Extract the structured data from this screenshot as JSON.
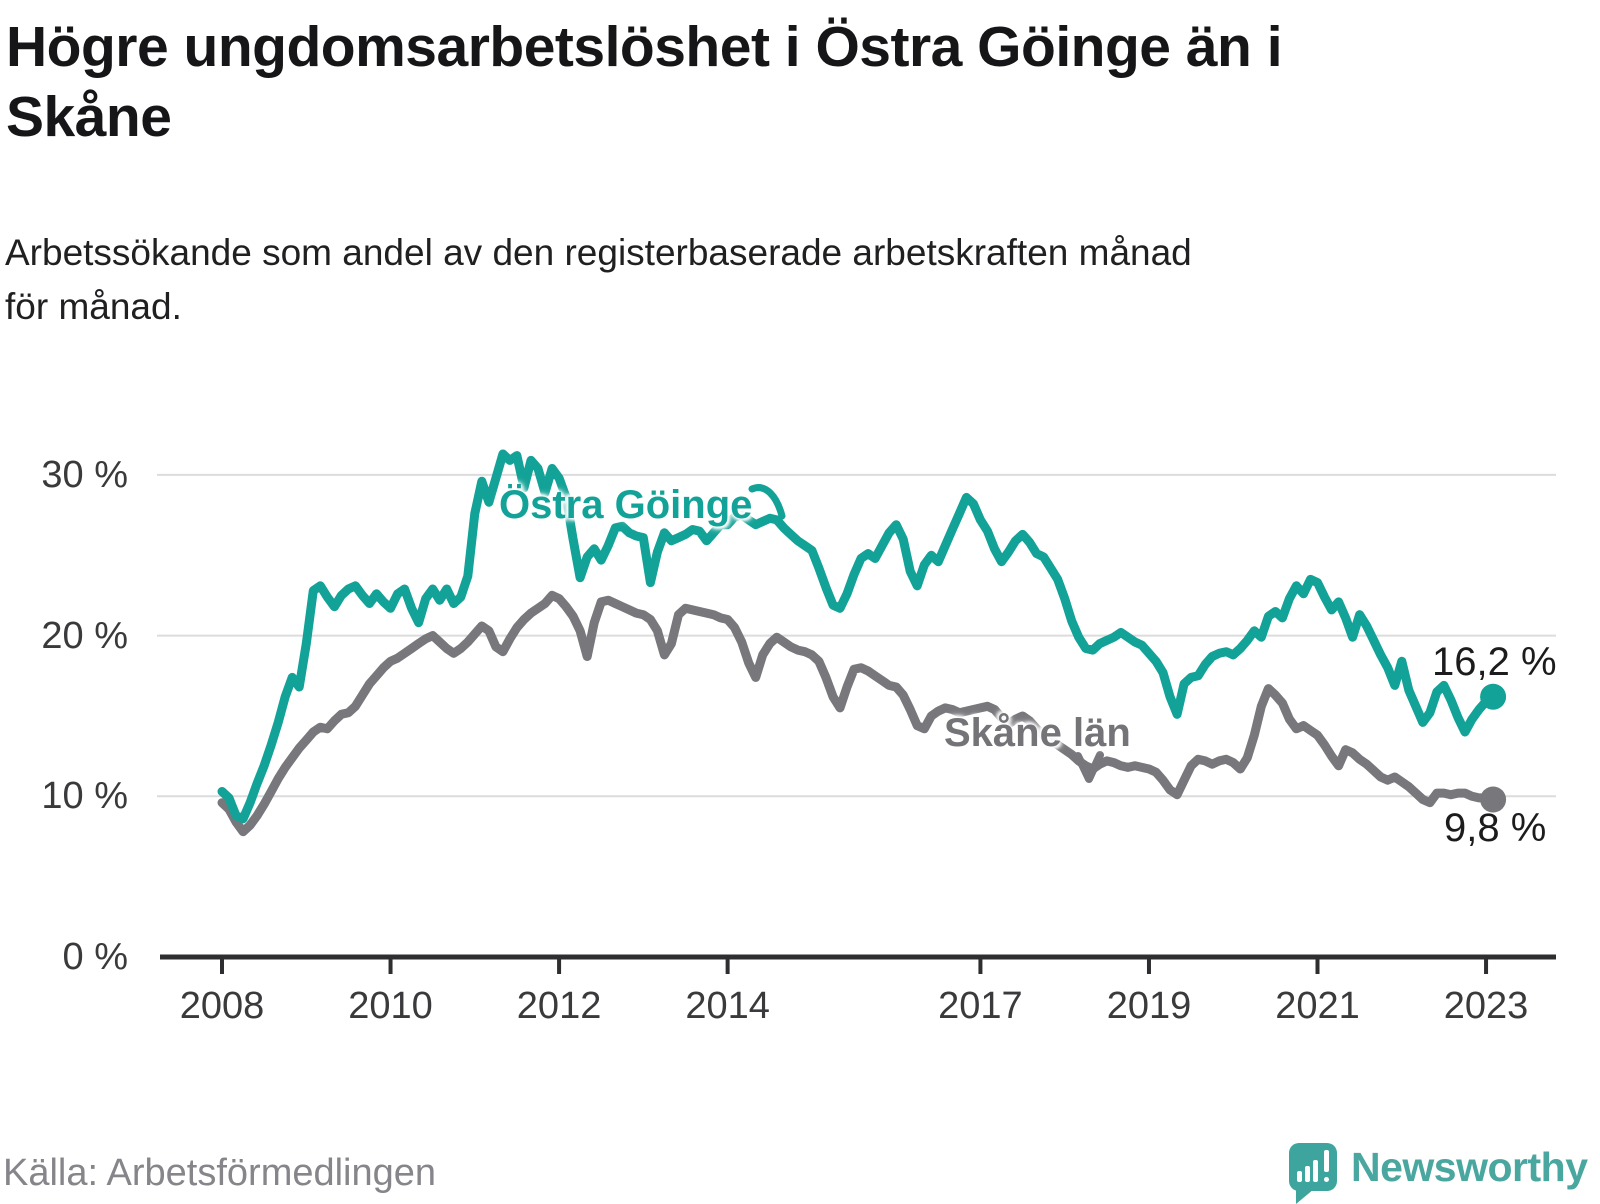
{
  "header": {
    "title": "Högre ungdomsarbetslöshet i Östra Göinge än i\nSkåne",
    "subtitle": "Arbetssökande som andel av den registerbaserade arbetskraften månad\nför månad."
  },
  "footer": {
    "source": "Källa: Arbetsförmedlingen",
    "brand": "Newsworthy"
  },
  "colors": {
    "accent_teal": "#13a297",
    "line_gray": "#77777c",
    "axis": "#2e2e30",
    "grid": "#dcdcdc",
    "text_dark": "#161618",
    "text_muted": "#85858a"
  },
  "chart_data": {
    "type": "line",
    "title": "Högre ungdomsarbetslöshet i Östra Göinge än i Skåne",
    "xlabel": "",
    "ylabel": "",
    "unit": "%",
    "frequency": "monthly",
    "x_start_year": 2008,
    "x_start_month": 1,
    "x_end_year": 2023,
    "x_end_month": 2,
    "grid": true,
    "legend_position": "inline-annotations",
    "ylim": [
      0,
      33
    ],
    "y_ticks": [
      0,
      10,
      20,
      30
    ],
    "y_tick_labels": [
      "0 %",
      "10 %",
      "20 %",
      "30 %"
    ],
    "x_ticks": [
      2008,
      2010,
      2012,
      2014,
      2017,
      2019,
      2021,
      2023
    ],
    "series": [
      {
        "name": "Östra Göinge",
        "color": "#13a297",
        "end_value": 16.2,
        "end_label": "16,2 %",
        "values": [
          10.3,
          9.9,
          8.8,
          8.6,
          9.6,
          10.8,
          11.9,
          13.2,
          14.6,
          16.2,
          17.4,
          16.8,
          19.5,
          22.8,
          23.1,
          22.4,
          21.8,
          22.5,
          22.9,
          23.1,
          22.5,
          22.0,
          22.6,
          22.1,
          21.7,
          22.6,
          22.9,
          21.7,
          20.8,
          22.3,
          22.9,
          22.2,
          22.9,
          22.0,
          22.4,
          23.7,
          27.6,
          29.6,
          28.3,
          29.8,
          31.3,
          30.9,
          31.2,
          29.2,
          30.9,
          30.4,
          28.9,
          30.4,
          29.8,
          28.6,
          26.0,
          23.6,
          24.9,
          25.4,
          24.7,
          25.6,
          26.7,
          26.8,
          26.4,
          26.2,
          26.1,
          23.3,
          25.2,
          26.4,
          25.9,
          26.1,
          26.3,
          26.6,
          26.5,
          25.9,
          26.4,
          26.9,
          26.9,
          27.4,
          27.5,
          27.2,
          26.9,
          27.1,
          27.3,
          27.2,
          26.7,
          26.3,
          25.9,
          25.6,
          25.3,
          24.2,
          23.0,
          21.9,
          21.7,
          22.6,
          23.8,
          24.8,
          25.1,
          24.8,
          25.6,
          26.4,
          26.9,
          26.0,
          24.0,
          23.1,
          24.4,
          25.0,
          24.6,
          25.6,
          26.6,
          27.6,
          28.6,
          28.2,
          27.2,
          26.5,
          25.4,
          24.6,
          25.2,
          25.9,
          26.3,
          25.8,
          25.1,
          24.9,
          24.2,
          23.5,
          22.3,
          20.9,
          19.9,
          19.2,
          19.1,
          19.5,
          19.7,
          19.9,
          20.2,
          19.9,
          19.6,
          19.4,
          18.9,
          18.4,
          17.7,
          16.2,
          15.1,
          17.0,
          17.4,
          17.5,
          18.2,
          18.7,
          18.9,
          19.0,
          18.8,
          19.2,
          19.7,
          20.3,
          19.9,
          21.2,
          21.5,
          21.1,
          22.3,
          23.1,
          22.6,
          23.5,
          23.3,
          22.4,
          21.6,
          22.1,
          21.1,
          19.9,
          21.3,
          20.6,
          19.7,
          18.8,
          18.0,
          16.9,
          18.4,
          16.6,
          15.6,
          14.6,
          15.2,
          16.5,
          16.9,
          16.0,
          14.9,
          14.0,
          14.8,
          15.4,
          15.9,
          16.2
        ]
      },
      {
        "name": "Skåne län",
        "color": "#77777c",
        "end_value": 9.8,
        "end_label": "9,8 %",
        "values": [
          9.6,
          9.2,
          8.4,
          7.8,
          8.2,
          8.8,
          9.5,
          10.3,
          11.1,
          11.8,
          12.4,
          13.0,
          13.5,
          14.0,
          14.3,
          14.2,
          14.7,
          15.1,
          15.2,
          15.6,
          16.3,
          17.0,
          17.5,
          18.0,
          18.4,
          18.6,
          18.9,
          19.2,
          19.5,
          19.8,
          20.0,
          19.6,
          19.2,
          18.9,
          19.2,
          19.6,
          20.1,
          20.6,
          20.3,
          19.3,
          19.0,
          19.8,
          20.5,
          21.0,
          21.4,
          21.7,
          22.0,
          22.5,
          22.3,
          21.8,
          21.2,
          20.3,
          18.7,
          20.8,
          22.1,
          22.2,
          22.0,
          21.8,
          21.6,
          21.4,
          21.3,
          21.0,
          20.3,
          18.8,
          19.5,
          21.3,
          21.7,
          21.6,
          21.5,
          21.4,
          21.3,
          21.1,
          21.0,
          20.5,
          19.6,
          18.3,
          17.4,
          18.8,
          19.5,
          19.9,
          19.6,
          19.3,
          19.1,
          19.0,
          18.8,
          18.4,
          17.4,
          16.2,
          15.5,
          16.8,
          17.9,
          18.0,
          17.8,
          17.5,
          17.2,
          16.9,
          16.8,
          16.3,
          15.4,
          14.4,
          14.2,
          15.0,
          15.3,
          15.5,
          15.4,
          15.2,
          15.3,
          15.4,
          15.5,
          15.6,
          15.4,
          14.9,
          14.5,
          14.8,
          15.0,
          14.7,
          14.2,
          13.8,
          13.5,
          13.2,
          12.9,
          12.6,
          12.2,
          11.9,
          11.7,
          12.0,
          12.2,
          12.1,
          11.9,
          11.8,
          11.9,
          11.8,
          11.7,
          11.5,
          11.0,
          10.4,
          10.1,
          11.0,
          11.9,
          12.3,
          12.2,
          12.0,
          12.2,
          12.3,
          12.1,
          11.7,
          12.4,
          13.8,
          15.6,
          16.7,
          16.3,
          15.8,
          14.8,
          14.2,
          14.4,
          14.1,
          13.8,
          13.2,
          12.5,
          11.9,
          12.9,
          12.7,
          12.3,
          12.0,
          11.6,
          11.2,
          11.0,
          11.2,
          10.9,
          10.6,
          10.2,
          9.8,
          9.6,
          10.2,
          10.2,
          10.1,
          10.2,
          10.2,
          10.0,
          9.9,
          9.9,
          9.8
        ]
      }
    ]
  }
}
